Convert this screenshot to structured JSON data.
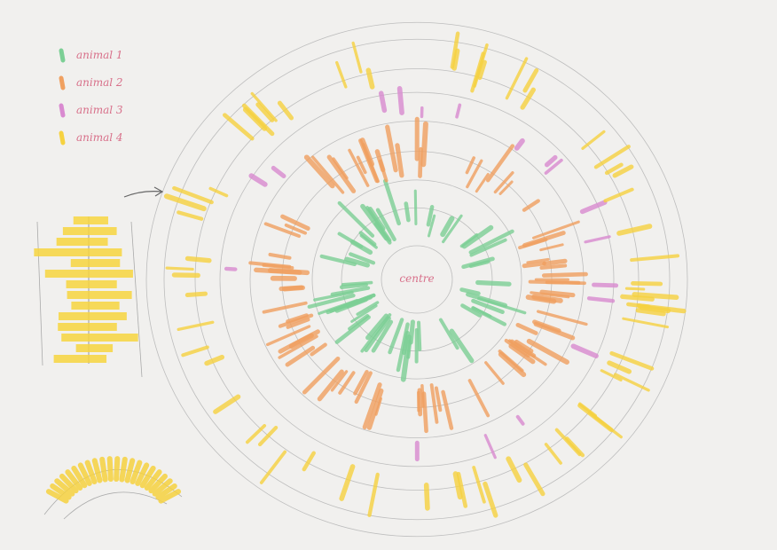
{
  "legend": {
    "items": [
      {
        "label": "animal 1",
        "color": "#7ccf95"
      },
      {
        "label": "animal 2",
        "color": "#f0a060"
      },
      {
        "label": "animal 3",
        "color": "#d98ad0"
      },
      {
        "label": "animal 4",
        "color": "#f6d240"
      }
    ]
  },
  "center": {
    "label": "centre"
  }
}
